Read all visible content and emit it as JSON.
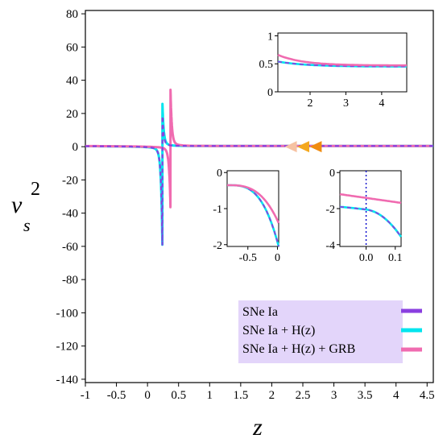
{
  "chart_data": {
    "type": "line",
    "xlabel": "z",
    "ylabel": {
      "main": "v",
      "sup": "2",
      "sub": "s"
    },
    "xlim": [
      -1.0,
      4.6
    ],
    "ylim": [
      -142,
      82
    ],
    "xticks": [
      "-1",
      "-0.5",
      "0",
      "0.5",
      "1",
      "1.5",
      "2",
      "2.5",
      "3",
      "3.5",
      "4",
      "4.5"
    ],
    "yticks": [
      "80",
      "60",
      "40",
      "20",
      "0",
      "-20",
      "-40",
      "-60",
      "-80",
      "-100",
      "-120",
      "-140"
    ],
    "series": [
      {
        "name": "SNe Ia",
        "color": "#8a3fe0",
        "style": "dashed",
        "singularity": 0.24,
        "peak_min": -57,
        "peak_max": 17,
        "asymptote": 0.45
      },
      {
        "name": "SNe Ia + H(z)",
        "color": "#00e5ee",
        "style": "solid",
        "singularity": 0.24,
        "peak_min": -57,
        "peak_max": 24,
        "asymptote": 0.45
      },
      {
        "name": "SNe Ia + H(z) + GRB",
        "color": "#f06bb0",
        "style": "solid",
        "singularity": 0.37,
        "peak_min": -35,
        "peak_max": 32,
        "asymptote": 0.47
      }
    ],
    "markers": [
      {
        "x": 2.3,
        "y": 0,
        "color": "#f6c2a2"
      },
      {
        "x": 2.5,
        "y": 0,
        "color": "#f4a81e"
      },
      {
        "x": 2.7,
        "y": 0,
        "color": "#f08c10"
      }
    ],
    "insets": [
      {
        "xlim": [
          1.1,
          4.7
        ],
        "ylim": [
          0,
          1.05
        ],
        "xticks": [
          "2",
          "3",
          "4"
        ],
        "yticks": [
          "0",
          "0.5",
          "1"
        ]
      },
      {
        "xlim": [
          -0.85,
          0.02
        ],
        "ylim": [
          -2.05,
          0.05
        ],
        "xticks": [
          "-0.5",
          "0"
        ],
        "yticks": [
          "0",
          "-1",
          "-2"
        ]
      },
      {
        "xlim": [
          -0.09,
          0.12
        ],
        "ylim": [
          -4.1,
          0.1
        ],
        "xticks": [
          "0.0",
          "0.1"
        ],
        "yticks": [
          "0",
          "-2",
          "-4"
        ],
        "vline": 0.0
      }
    ],
    "legend_position": "bottom-right",
    "legend_background": "#e3d5fa"
  }
}
